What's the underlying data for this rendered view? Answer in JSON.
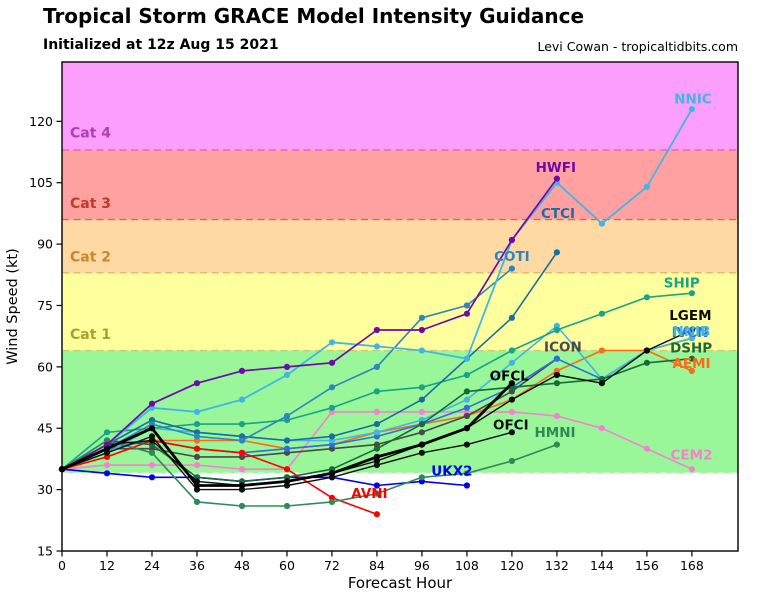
{
  "header": {
    "title": "Tropical Storm GRACE Model Intensity Guidance",
    "subtitle": "Initialized at 12z Aug 15 2021",
    "credit": "Levi Cowan - tropicaltidbits.com"
  },
  "chart_data": {
    "type": "line",
    "title": "Tropical Storm GRACE Model Intensity Guidance",
    "xlabel": "Forecast Hour",
    "ylabel": "Wind Speed (kt)",
    "xlim": [
      0,
      180.3
    ],
    "ylim": [
      15,
      134.5
    ],
    "x_ticks": [
      0,
      12,
      24,
      36,
      48,
      60,
      72,
      84,
      96,
      108,
      120,
      132,
      144,
      156,
      168
    ],
    "y_ticks": [
      15,
      30,
      45,
      60,
      75,
      90,
      105,
      120
    ],
    "grid": false,
    "legend_position": "end-of-line-labels",
    "bands": [
      {
        "name": "TD",
        "from": 15,
        "to": 34,
        "color": "#ffffff"
      },
      {
        "name": "TS",
        "from": 34,
        "to": 64,
        "color": "#99f699"
      },
      {
        "name": "Cat1",
        "from": 64,
        "to": 83,
        "color": "#ffff9e"
      },
      {
        "name": "Cat2",
        "from": 83,
        "to": 96,
        "color": "#ffd9a3"
      },
      {
        "name": "Cat3",
        "from": 96,
        "to": 113,
        "color": "#ffa1a1"
      },
      {
        "name": "Cat4",
        "from": 113,
        "to": 134.5,
        "color": "#fc9efc"
      }
    ],
    "boundaries": [
      {
        "kt": 34,
        "color": "#ffffff"
      },
      {
        "kt": 64,
        "color": "#c9cc6e"
      },
      {
        "kt": 83,
        "color": "#eab066"
      },
      {
        "kt": 96,
        "color": "#d96a5a"
      },
      {
        "kt": 113,
        "color": "#d25fd2"
      }
    ],
    "category_labels": [
      {
        "text": "Cat 1",
        "kt": 66.8,
        "color": "#a8a22e"
      },
      {
        "text": "Cat 2",
        "kt": 85.8,
        "color": "#c8862d"
      },
      {
        "text": "Cat 3",
        "kt": 98.8,
        "color": "#c0392b"
      },
      {
        "text": "Cat 4",
        "kt": 116.0,
        "color": "#b13fb1"
      }
    ],
    "series": [
      {
        "name": "CEM2",
        "color": "#f97fd4",
        "width": 1.6,
        "hours": [
          0,
          12,
          24,
          36,
          48,
          60,
          72,
          84,
          96,
          108,
          120,
          132,
          144,
          156,
          168
        ],
        "values": [
          35,
          36,
          36,
          36,
          35,
          35,
          49,
          49,
          49,
          49,
          49,
          48,
          45,
          40,
          35
        ]
      },
      {
        "name": "AEMI",
        "color": "#ff6a13",
        "width": 1.6,
        "hours": [
          0,
          12,
          24,
          36,
          48,
          60,
          72,
          84,
          96,
          108,
          120,
          132,
          144,
          156,
          168
        ],
        "values": [
          35,
          40,
          42,
          42,
          42,
          40,
          41,
          44,
          46,
          48,
          52,
          59,
          64,
          64,
          59
        ]
      },
      {
        "name": "ICON",
        "color": "#4a4a4a",
        "width": 1.6,
        "hours": [
          0,
          12,
          24,
          36,
          48,
          60,
          72,
          84,
          96,
          108,
          120,
          132
        ],
        "values": [
          35,
          40,
          40,
          38,
          38,
          39,
          40,
          41,
          44,
          48,
          54,
          62
        ]
      },
      {
        "name": "IVCN",
        "color": "#2e6fdf",
        "width": 1.6,
        "hours": [
          0,
          12,
          24,
          36,
          48,
          60,
          72,
          84,
          96,
          108,
          120,
          132,
          144,
          156,
          168
        ],
        "values": [
          35,
          40,
          42,
          40,
          39,
          40,
          41,
          43,
          46,
          50,
          55,
          62,
          57,
          64,
          67
        ]
      },
      {
        "name": "NNIB",
        "color": "#41b6e6",
        "width": 1.6,
        "hours": [
          0,
          12,
          24,
          36,
          48,
          60,
          72,
          84,
          96,
          108,
          120,
          132,
          144,
          156,
          168
        ],
        "values": [
          35,
          39,
          45,
          44,
          43,
          42,
          42,
          44,
          47,
          52,
          61,
          70,
          57,
          64,
          67
        ]
      },
      {
        "name": "UKX2",
        "color": "#0000ee",
        "width": 1.6,
        "hours": [
          0,
          12,
          24,
          36,
          48,
          60,
          72,
          84,
          96,
          108
        ],
        "values": [
          35,
          34,
          33,
          33,
          32,
          33,
          33,
          31,
          32,
          31
        ]
      },
      {
        "name": "AVNI",
        "color": "#ff0000",
        "width": 1.6,
        "hours": [
          0,
          12,
          24,
          36,
          48,
          60,
          72,
          84
        ],
        "values": [
          35,
          38,
          42,
          40,
          39,
          35,
          28,
          24
        ]
      },
      {
        "name": "SHIP",
        "color": "#17a589",
        "width": 1.6,
        "hours": [
          0,
          12,
          24,
          36,
          48,
          60,
          72,
          84,
          96,
          108,
          120,
          132,
          144,
          156,
          168
        ],
        "values": [
          35,
          44,
          45,
          46,
          46,
          47,
          50,
          54,
          55,
          58,
          64,
          69,
          73,
          77,
          78
        ]
      },
      {
        "name": "DSHP",
        "color": "#186a3b",
        "width": 1.6,
        "hours": [
          0,
          12,
          24,
          36,
          48,
          60,
          72,
          84,
          96,
          108,
          120,
          132,
          144,
          156,
          168
        ],
        "values": [
          35,
          42,
          41,
          33,
          32,
          33,
          35,
          40,
          46,
          54,
          55,
          56,
          57,
          61,
          62
        ]
      },
      {
        "name": "LGEM",
        "color": "#0a0a0a",
        "width": 1.4,
        "hours": [
          0,
          12,
          24,
          36,
          48,
          60,
          72,
          84,
          96,
          108,
          120,
          132,
          144,
          156,
          168
        ],
        "values": [
          35,
          41,
          42,
          32,
          31,
          32,
          34,
          37,
          41,
          45,
          52,
          58,
          56,
          64,
          69
        ]
      },
      {
        "name": "HMNI",
        "color": "#2e8b57",
        "width": 1.6,
        "hours": [
          0,
          12,
          24,
          36,
          48,
          60,
          72,
          84,
          96,
          108,
          120,
          132
        ],
        "values": [
          35,
          42,
          39,
          27,
          26,
          26,
          27,
          29,
          33,
          34,
          37,
          41
        ]
      },
      {
        "name": "CTCI",
        "color": "#1a6d9e",
        "width": 1.6,
        "hours": [
          0,
          12,
          24,
          36,
          48,
          60,
          72,
          84,
          96,
          108,
          120,
          132
        ],
        "values": [
          35,
          41,
          47,
          44,
          43,
          42,
          43,
          46,
          52,
          62,
          72,
          88
        ]
      },
      {
        "name": "COTI",
        "color": "#2e86c1",
        "width": 1.6,
        "hours": [
          0,
          12,
          24,
          36,
          48,
          60,
          72,
          84,
          96,
          108,
          120
        ],
        "values": [
          35,
          40,
          46,
          43,
          42,
          48,
          55,
          60,
          72,
          75,
          84
        ]
      },
      {
        "name": "NNIC",
        "color": "#41b6e6",
        "width": 1.8,
        "hours": [
          0,
          12,
          24,
          36,
          48,
          60,
          72,
          84,
          96,
          108,
          120,
          132,
          144,
          156,
          168
        ],
        "values": [
          35,
          41,
          50,
          49,
          52,
          58,
          66,
          65,
          64,
          62,
          91,
          105,
          95,
          104,
          123
        ]
      },
      {
        "name": "HWFI",
        "color": "#7109aa",
        "width": 1.7,
        "hours": [
          0,
          12,
          24,
          36,
          48,
          60,
          72,
          84,
          96,
          108,
          120,
          132
        ],
        "values": [
          35,
          41,
          51,
          56,
          59,
          60,
          61,
          69,
          69,
          73,
          91,
          106
        ]
      },
      {
        "name": "OFCI",
        "color": "#111111",
        "width": 1.4,
        "hours": [
          0,
          12,
          24,
          36,
          48,
          60,
          72,
          84,
          96,
          108,
          120
        ],
        "values": [
          35,
          39,
          43,
          30,
          30,
          31,
          33,
          36,
          39,
          41,
          44
        ]
      },
      {
        "name": "OFCL",
        "color": "#000000",
        "width": 2.8,
        "hours": [
          0,
          12,
          24,
          36,
          48,
          60,
          72,
          84,
          96,
          108,
          120
        ],
        "values": [
          35,
          40,
          45,
          31,
          31,
          32,
          34,
          38,
          41,
          45,
          56
        ]
      }
    ],
    "model_labels": [
      {
        "text": "NNIC",
        "hour": 168.3,
        "kt": 125.5,
        "color": "#41b6e6"
      },
      {
        "text": "HWFI",
        "hour": 131.7,
        "kt": 108.7,
        "color": "#7109aa"
      },
      {
        "text": "CTCI",
        "hour": 132.3,
        "kt": 97.5,
        "color": "#1a6d9e"
      },
      {
        "text": "COTI",
        "hour": 120.0,
        "kt": 87.0,
        "color": "#2e86c1"
      },
      {
        "text": "SHIP",
        "hour": 165.3,
        "kt": 80.5,
        "color": "#17a589"
      },
      {
        "text": "LGEM",
        "hour": 167.6,
        "kt": 72.6,
        "color": "#0a0a0a"
      },
      {
        "text": "IVCN",
        "hour": 167.5,
        "kt": 68.4,
        "color": "#2e6fdf"
      },
      {
        "text": "NNIB",
        "hour": 167.9,
        "kt": 68.6,
        "color": "#41b6e6"
      },
      {
        "text": "DSHP",
        "hour": 167.8,
        "kt": 64.6,
        "color": "#186a3b"
      },
      {
        "text": "AEMI",
        "hour": 167.9,
        "kt": 60.8,
        "color": "#ff6a13"
      },
      {
        "text": "ICON",
        "hour": 133.6,
        "kt": 64.9,
        "color": "#4a4a4a"
      },
      {
        "text": "OFCL",
        "hour": 119.3,
        "kt": 57.8,
        "color": "#000000"
      },
      {
        "text": "OFCI",
        "hour": 119.7,
        "kt": 45.8,
        "color": "#111111"
      },
      {
        "text": "HMNI",
        "hour": 131.5,
        "kt": 44.0,
        "color": "#2e8b57"
      },
      {
        "text": "UKX2",
        "hour": 104.0,
        "kt": 34.5,
        "color": "#0000ee"
      },
      {
        "text": "AVNI",
        "hour": 82.0,
        "kt": 29.0,
        "color": "#ff0000"
      },
      {
        "text": "CEM2",
        "hour": 167.9,
        "kt": 38.4,
        "color": "#f97fd4"
      }
    ]
  }
}
